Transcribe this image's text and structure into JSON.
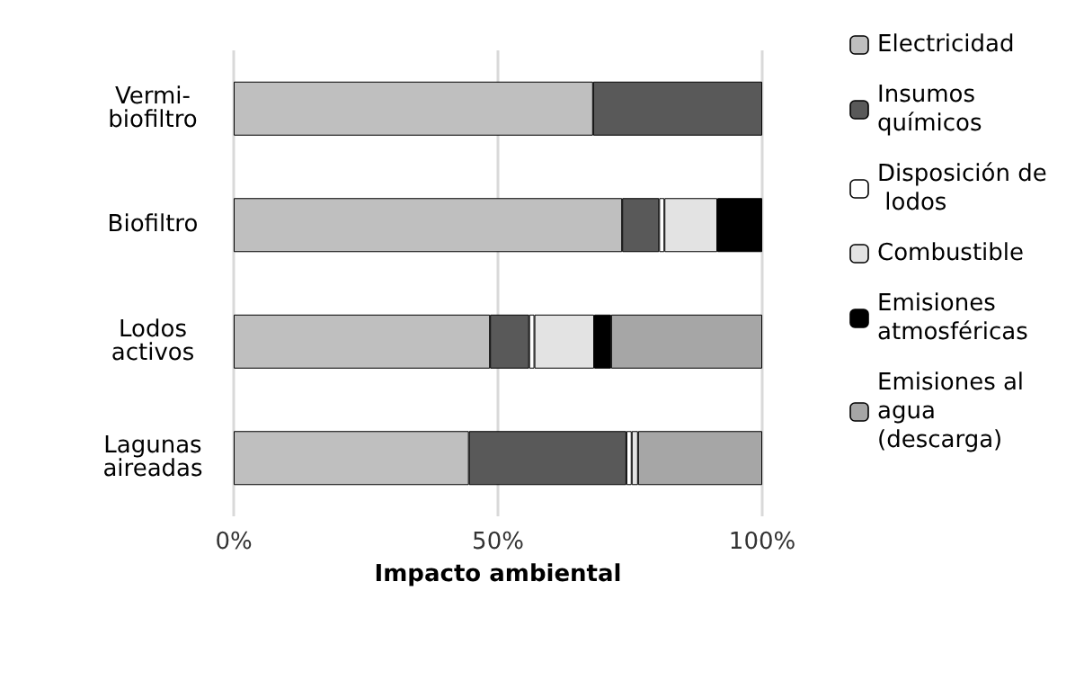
{
  "chart_data": {
    "type": "bar",
    "orientation": "horizontal",
    "stacked": true,
    "categories": [
      "Vermi-biofiltro",
      "Biofiltro",
      "Lodos activos",
      "Lagunas aireadas"
    ],
    "series": [
      {
        "name": "Electricidad",
        "color": "#bfbfbf",
        "values": [
          68,
          73.5,
          48.5,
          44.5
        ]
      },
      {
        "name": "Insumos químicos",
        "color": "#595959",
        "values": [
          32,
          7,
          7.4,
          29.8
        ]
      },
      {
        "name": "Disposición de lodos",
        "color": "#ffffff",
        "values": [
          null,
          1,
          1,
          1
        ]
      },
      {
        "name": "Combustible",
        "color": "#e3e3e3",
        "values": [
          null,
          10,
          11.3,
          1.2
        ]
      },
      {
        "name": "Emisiones atmosféricas",
        "color": "#000000",
        "values": [
          null,
          8.5,
          3.2,
          null
        ]
      },
      {
        "name": "Emisiones al agua (descarga)",
        "color": "#a6a6a6",
        "values": [
          null,
          null,
          28.6,
          23.5
        ]
      }
    ],
    "xlabel": "Impacto ambiental",
    "xlim": [
      0,
      100
    ],
    "xticks": [
      {
        "value": 0,
        "label": "0%"
      },
      {
        "value": 50,
        "label": "50%"
      },
      {
        "value": 100,
        "label": "100%"
      }
    ],
    "grid": "x",
    "legend": "right"
  }
}
